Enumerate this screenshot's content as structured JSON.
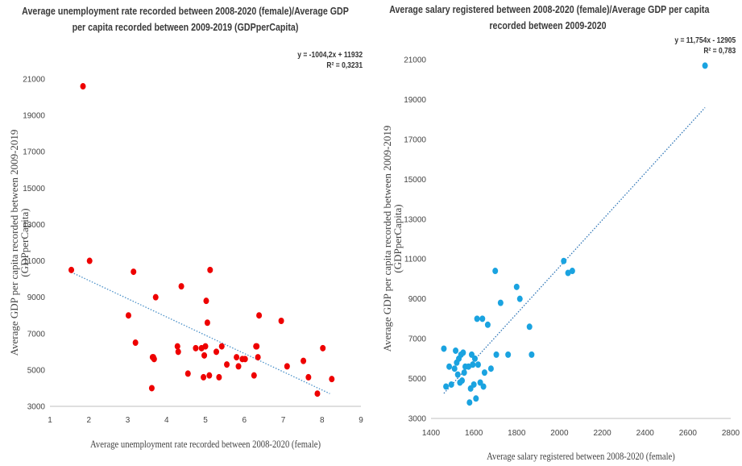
{
  "chart_data": [
    {
      "type": "scatter",
      "title": "Average unemployment rate recorded between 2008-2020 (female)/Average GDP per capita recorded between 2009-2019 (GDPperCapita)",
      "title_lines": [
        "Average unemployment rate recorded between 2008-2020 (female)/Average GDP",
        "per capita recorded between 2009-2019 (GDPperCapita)"
      ],
      "xlabel": "Average unemployment rate recorded between 2008-2020  (female)",
      "ylabel": "Average GDP per capita recorded between 2009-2019 (GDPperCapita)",
      "ylabel_lines": [
        "Average GDP per capita recorded between 2009-2019",
        "(GDPperCapita)"
      ],
      "xlim": [
        1,
        9
      ],
      "ylim": [
        3000,
        21000
      ],
      "xticks": [
        1,
        2,
        3,
        4,
        5,
        6,
        7,
        8,
        9
      ],
      "yticks": [
        3000,
        5000,
        7000,
        9000,
        11000,
        13000,
        15000,
        17000,
        19000,
        21000
      ],
      "equation": "y = -1004,2x + 11932",
      "r2": "R² = 0,3231",
      "trendline": {
        "slope": -1004.2,
        "intercept": 11932,
        "x_range": [
          1.55,
          8.2
        ]
      },
      "point_color": "#ee0000",
      "trend_color": "#4a90c8",
      "grid": false,
      "x": [
        1.55,
        1.85,
        2.02,
        3.02,
        3.15,
        3.2,
        3.62,
        3.64,
        3.66,
        3.68,
        3.72,
        4.28,
        4.3,
        4.38,
        4.55,
        4.75,
        4.9,
        4.95,
        4.97,
        5.0,
        5.02,
        5.05,
        5.1,
        5.12,
        5.28,
        5.35,
        5.42,
        5.55,
        5.8,
        5.85,
        5.95,
        6.02,
        6.25,
        6.3,
        6.32,
        6.35,
        6.38,
        6.95,
        7.1,
        7.52,
        7.65,
        7.88,
        8.02,
        8.25
      ],
      "y": [
        10500,
        20600,
        11000,
        8000,
        10400,
        6500,
        4000,
        5700,
        5700,
        5600,
        9000,
        6300,
        6000,
        9600,
        4800,
        6200,
        6200,
        4600,
        5800,
        6300,
        8800,
        7600,
        4700,
        10500,
        6000,
        4600,
        6300,
        5300,
        5700,
        5200,
        5600,
        5600,
        4700,
        6300,
        6300,
        5700,
        8000,
        7700,
        5200,
        5500,
        4600,
        3700,
        6200,
        4500
      ]
    },
    {
      "type": "scatter",
      "title": "Average salary registered between 2008-2020 (female)/Average GDP per capita recorded between 2009-2020",
      "title_lines": [
        "Average salary registered between 2008-2020 (female)/Average GDP per capita",
        "recorded between 2009-2020"
      ],
      "xlabel": "Average salary registered between 2008-2020  (female)",
      "ylabel": "Average GDP per capita recorded between 2009-2019 (GDPperCapita)",
      "ylabel_lines": [
        "Average GDP per capita recorded between 2009-2019",
        "(GDPperCapita)"
      ],
      "xlim": [
        1400,
        2800
      ],
      "ylim": [
        3000,
        21000
      ],
      "xticks": [
        1400,
        1600,
        1800,
        2000,
        2200,
        2400,
        2600,
        2800
      ],
      "yticks": [
        3000,
        5000,
        7000,
        9000,
        11000,
        13000,
        15000,
        17000,
        19000,
        21000
      ],
      "equation": "y = 11,754x - 12905",
      "r2": "R² = 0,783",
      "trendline": {
        "slope": 11.754,
        "intercept": -12905,
        "x_range": [
          1460,
          2680
        ]
      },
      "point_color": "#1aa3e0",
      "trend_color": "#2e75b6",
      "grid": false,
      "x": [
        1460,
        1470,
        1485,
        1495,
        1510,
        1515,
        1520,
        1525,
        1530,
        1535,
        1540,
        1545,
        1550,
        1555,
        1560,
        1575,
        1580,
        1585,
        1590,
        1595,
        1600,
        1605,
        1610,
        1615,
        1620,
        1630,
        1640,
        1645,
        1650,
        1665,
        1680,
        1700,
        1705,
        1725,
        1760,
        1800,
        1815,
        1860,
        1870,
        2020,
        2040,
        2060,
        2680
      ],
      "y": [
        6500,
        4600,
        5600,
        4700,
        5500,
        6400,
        5800,
        5200,
        6000,
        4800,
        6200,
        4900,
        6300,
        5300,
        5600,
        5600,
        3800,
        4500,
        6200,
        5700,
        4700,
        6000,
        4000,
        8000,
        5700,
        4800,
        8000,
        4600,
        5300,
        7700,
        5500,
        10400,
        6200,
        8800,
        6200,
        9600,
        9000,
        7600,
        6200,
        10900,
        10300,
        10400,
        20700
      ]
    }
  ]
}
